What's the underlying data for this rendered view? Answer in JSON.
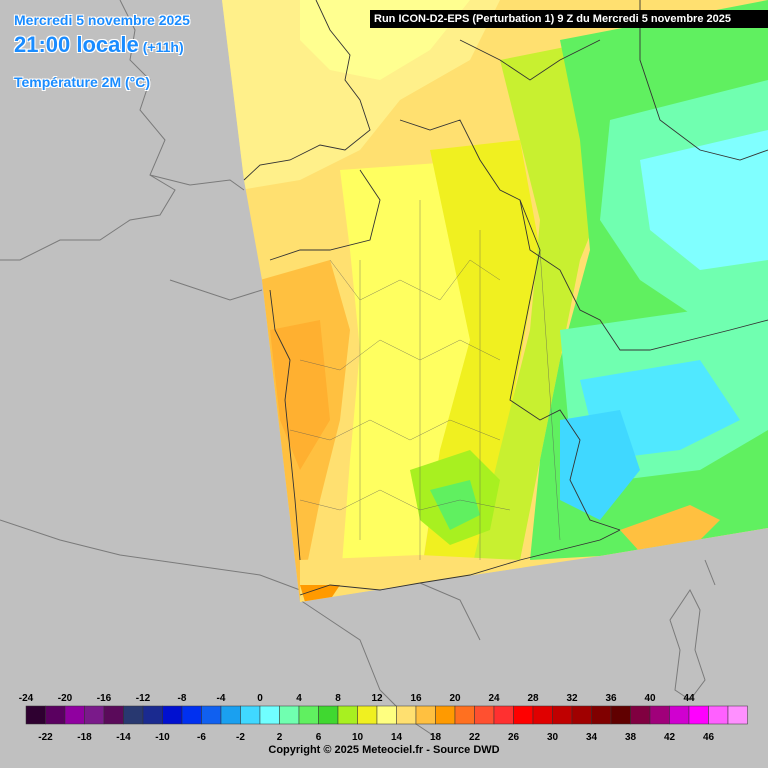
{
  "header": {
    "date": "Mercredi 5 novembre 2025",
    "time": "21:00 locale",
    "lead": "(+11h)",
    "parameter": "Température 2M (°C)"
  },
  "run_banner": "Run ICON-D2-EPS (Perturbation 1) 9 Z du Mercredi 5 novembre 2025",
  "legend": {
    "top_labels": [
      "-24",
      "-20",
      "-16",
      "-12",
      "-8",
      "-4",
      "0",
      "4",
      "8",
      "12",
      "16",
      "20",
      "24",
      "28",
      "32",
      "36",
      "40",
      "44"
    ],
    "bottom_labels": [
      "-22",
      "-18",
      "-14",
      "-10",
      "-6",
      "-2",
      "2",
      "6",
      "10",
      "14",
      "18",
      "22",
      "26",
      "30",
      "34",
      "38",
      "42",
      "46"
    ],
    "colors": [
      "#2e0030",
      "#5a0060",
      "#9000a0",
      "#7a1a8a",
      "#5a0a5a",
      "#283870",
      "#1a2a90",
      "#0010d0",
      "#0030f0",
      "#1060f0",
      "#1aa0f0",
      "#40d8ff",
      "#70ffff",
      "#70ffb0",
      "#60f060",
      "#40d830",
      "#a8f020",
      "#f0f020",
      "#ffff80",
      "#ffe070",
      "#ffc040",
      "#ff9a00",
      "#ff7020",
      "#ff5030",
      "#ff3030",
      "#ff0000",
      "#e00000",
      "#c00000",
      "#a00000",
      "#800000",
      "#600000",
      "#800040",
      "#a0007a",
      "#d000d0",
      "#ff00ff",
      "#ff60ff",
      "#ff90ff"
    ]
  },
  "copyright": "Copyright © 2025 Meteociel.fr - Source DWD"
}
